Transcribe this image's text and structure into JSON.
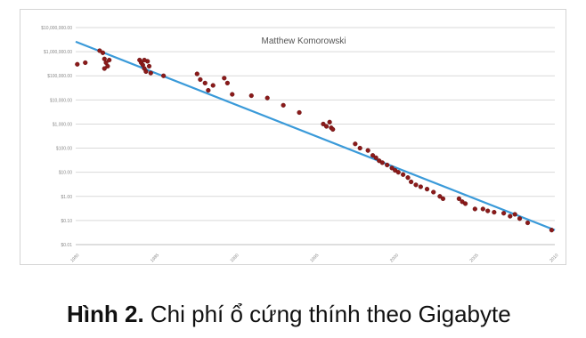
{
  "figure": {
    "caption_label": "Hình 2.",
    "caption_text": " Chi phí ổ cứng thính theo Gigabyte"
  },
  "chart_data": {
    "type": "scatter",
    "title": "Matthew Komorowski",
    "xlabel": "",
    "ylabel": "",
    "y_scale": "log",
    "x_range": [
      1980,
      2010
    ],
    "y_range": [
      0.01,
      10000000
    ],
    "x_ticks": [
      "1980",
      "1985",
      "1990",
      "1995",
      "2000",
      "2005",
      "2010"
    ],
    "y_ticks": [
      "$10,000,000.00",
      "$1,000,000.00",
      "$100,000.00",
      "$10,000.00",
      "$1,000.00",
      "$100.00",
      "$10.00",
      "$1.00",
      "$0.10",
      "$0.01"
    ],
    "grid": true,
    "colors": {
      "points": "#8b1a1a",
      "trend": "#3a9ad9",
      "grid": "#d9d9d9"
    },
    "trend_line": [
      [
        1980,
        2600000
      ],
      [
        2010,
        0.04
      ]
    ],
    "series": [
      {
        "points": [
          [
            1980.1,
            300000
          ],
          [
            1980.6,
            350000
          ],
          [
            1981.5,
            1100000
          ],
          [
            1981.7,
            900000
          ],
          [
            1981.8,
            500000
          ],
          [
            1981.9,
            350000
          ],
          [
            1982.0,
            250000
          ],
          [
            1981.8,
            200000
          ],
          [
            1982.1,
            450000
          ],
          [
            1984.0,
            450000
          ],
          [
            1984.1,
            350000
          ],
          [
            1984.2,
            280000
          ],
          [
            1984.3,
            200000
          ],
          [
            1984.4,
            150000
          ],
          [
            1984.5,
            400000
          ],
          [
            1984.6,
            250000
          ],
          [
            1984.7,
            130000
          ],
          [
            1984.3,
            450000
          ],
          [
            1985.5,
            100000
          ],
          [
            1987.6,
            120000
          ],
          [
            1987.8,
            70000
          ],
          [
            1988.1,
            50000
          ],
          [
            1988.3,
            25000
          ],
          [
            1988.6,
            40000
          ],
          [
            1989.3,
            80000
          ],
          [
            1989.5,
            50000
          ],
          [
            1989.8,
            17000
          ],
          [
            1991.0,
            15000
          ],
          [
            1992.0,
            12000
          ],
          [
            1993.0,
            6000
          ],
          [
            1994.0,
            3000
          ],
          [
            1995.5,
            1000
          ],
          [
            1995.7,
            800
          ],
          [
            1995.9,
            1200
          ],
          [
            1996.0,
            700
          ],
          [
            1996.1,
            600
          ],
          [
            1997.5,
            150
          ],
          [
            1997.8,
            100
          ],
          [
            1998.3,
            80
          ],
          [
            1998.6,
            50
          ],
          [
            1998.8,
            40
          ],
          [
            1999.0,
            30
          ],
          [
            1999.2,
            25
          ],
          [
            1999.5,
            20
          ],
          [
            1999.8,
            15
          ],
          [
            2000.0,
            12
          ],
          [
            2000.2,
            10
          ],
          [
            2000.5,
            8
          ],
          [
            2000.8,
            6
          ],
          [
            2001.0,
            4
          ],
          [
            2001.3,
            3
          ],
          [
            2001.6,
            2.5
          ],
          [
            2002.0,
            2
          ],
          [
            2002.4,
            1.5
          ],
          [
            2002.8,
            1.0
          ],
          [
            2003.0,
            0.8
          ],
          [
            2004.0,
            0.8
          ],
          [
            2004.2,
            0.6
          ],
          [
            2004.4,
            0.5
          ],
          [
            2005.0,
            0.3
          ],
          [
            2005.5,
            0.3
          ],
          [
            2005.8,
            0.25
          ],
          [
            2006.2,
            0.22
          ],
          [
            2006.8,
            0.2
          ],
          [
            2007.2,
            0.15
          ],
          [
            2007.5,
            0.18
          ],
          [
            2007.8,
            0.12
          ],
          [
            2008.3,
            0.08
          ],
          [
            2009.8,
            0.04
          ]
        ]
      }
    ]
  }
}
